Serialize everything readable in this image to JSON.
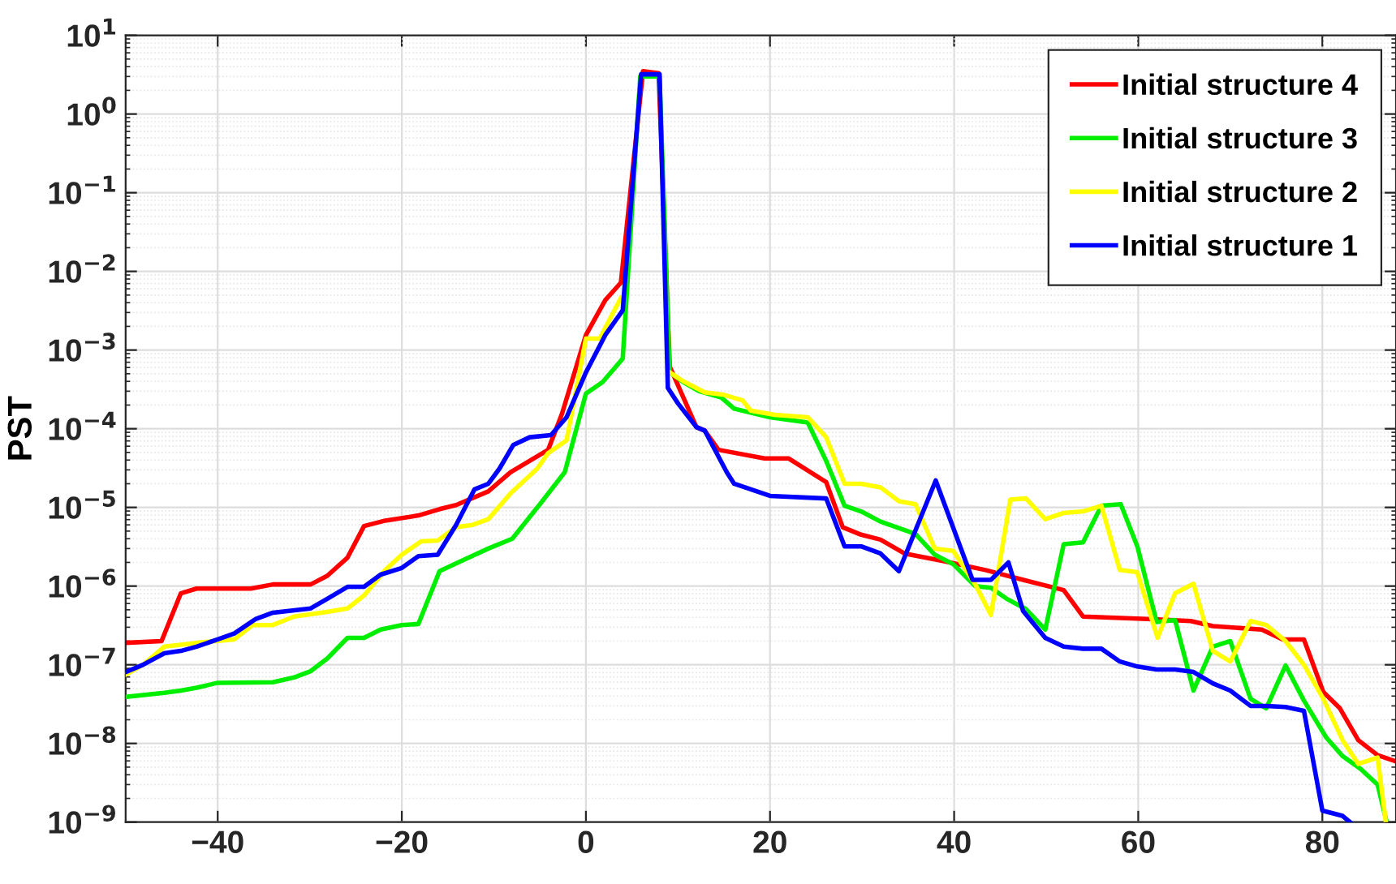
{
  "chart_data": {
    "type": "line",
    "ylabel": "PST",
    "log": "y",
    "grid": true,
    "legend": "top right",
    "line_style": "solid",
    "marker": "none",
    "xlim": [
      -50,
      88
    ],
    "ylim": [
      1e-09,
      10
    ],
    "xticks": [
      {
        "value": -40,
        "label": "−40"
      },
      {
        "value": -20,
        "label": "−20"
      },
      0,
      20,
      40,
      60,
      80
    ],
    "yticks": [
      {
        "value": 1e-09,
        "label": "10$^{−9}$"
      },
      {
        "value": 1e-08,
        "label": "10$^{−8}$"
      },
      {
        "value": 1e-07,
        "label": "10$^{−7}$"
      },
      {
        "value": 1e-06,
        "label": "10$^{−6}$"
      },
      {
        "value": 1e-05,
        "label": "10$^{−5}$"
      },
      {
        "value": 0.0001,
        "label": "10$^{−4}$"
      },
      {
        "value": 0.001,
        "label": "10$^{−3}$"
      },
      {
        "value": 0.01,
        "label": "10$^{−2}$"
      },
      {
        "value": 0.1,
        "label": "10$^{−1}$"
      },
      {
        "value": 1,
        "label": "10$^{0}$"
      },
      {
        "value": 10,
        "label": "10$^{1}$"
      }
    ],
    "series": [
      {
        "name": "Initial structure 4",
        "color": "#ff0000",
        "x": [
          -50,
          -46.1,
          -44.0,
          -42.3,
          -36.4,
          -34,
          -29.9,
          -28.1,
          -25.9,
          -24.1,
          -21.8,
          -18.2,
          -15.9,
          -14.1,
          -10.6,
          -8.2,
          -4.1,
          -2.6,
          0,
          2.1,
          3.8,
          6.2,
          7.9,
          9.1,
          12.0,
          12.9,
          14.4,
          19.4,
          22.0,
          26.1,
          27.9,
          29.9,
          32.0,
          34.6,
          38.7,
          43.4,
          47.5,
          51.9,
          54.0,
          61.6,
          65.7,
          68.1,
          73.4,
          75.7,
          78.0,
          80.1,
          81.9,
          83.9,
          86.0,
          88
        ],
        "values": [
          1.9e-07,
          2e-07,
          8.1e-07,
          9.3e-07,
          9.3e-07,
          1.05e-06,
          1.05e-06,
          1.35e-06,
          2.3e-06,
          5.8e-06,
          6.8e-06,
          7.9e-06,
          9.5e-06,
          1.07e-05,
          1.6e-05,
          2.8e-05,
          5.4e-05,
          0.000155,
          0.00155,
          0.0043,
          0.0072,
          3.5,
          3.3,
          0.00062,
          0.000105,
          9.5e-05,
          5.4e-05,
          4.2e-05,
          4.2e-05,
          2.1e-05,
          5.6e-06,
          4.5e-06,
          3.9e-06,
          2.6e-06,
          2.1e-06,
          1.6e-06,
          1.2e-06,
          8.9e-07,
          4.1e-07,
          3.8e-07,
          3.6e-07,
          3.1e-07,
          2.8e-07,
          2.1e-07,
          2.1e-07,
          4.5e-08,
          2.8e-08,
          1.1e-08,
          7.1e-09,
          5.9e-09
        ]
      },
      {
        "name": "Initial structure 3",
        "color": "#00ee00",
        "x": [
          -50,
          -45.8,
          -44,
          -42.3,
          -40,
          -34,
          -31.7,
          -29.9,
          -28.1,
          -25.9,
          -24.1,
          -22.3,
          -20,
          -18.2,
          -15.9,
          -13.5,
          -10.6,
          -8,
          -5,
          -2.3,
          0,
          1.8,
          4.0,
          5.9,
          8.0,
          9.1,
          10.6,
          12.3,
          14.7,
          16.1,
          20,
          24.1,
          26.1,
          28.1,
          29.9,
          32.0,
          35.8,
          37.9,
          39.9,
          42.3,
          44.0,
          45.8,
          47.8,
          49.9,
          51.9,
          54.0,
          56.0,
          58.1,
          59.9,
          62.0,
          64.0,
          66.0,
          68.1,
          70.0,
          72.2,
          73.9,
          76.0,
          78.0,
          80.4,
          82.2,
          84.2,
          86.0,
          86.9
        ],
        "values": [
          3.9e-08,
          4.4e-08,
          4.7e-08,
          5.1e-08,
          5.9e-08,
          6e-08,
          6.9e-08,
          8.3e-08,
          1.2e-07,
          2.2e-07,
          2.2e-07,
          2.8e-07,
          3.2e-07,
          3.3e-07,
          1.55e-06,
          2.1e-06,
          3e-06,
          4e-06,
          1.1e-05,
          2.8e-05,
          0.00028,
          0.00039,
          0.00078,
          3.0,
          3.0,
          0.00052,
          0.00039,
          0.0003,
          0.00025,
          0.00018,
          0.00014,
          0.00012,
          3.9e-05,
          1.05e-05,
          8.9e-06,
          6.6e-06,
          4.6e-06,
          2.5e-06,
          1.9e-06,
          1e-06,
          9.5e-07,
          6.8e-07,
          5.1e-07,
          2.8e-07,
          3.4e-06,
          3.6e-06,
          1.05e-05,
          1.1e-05,
          3.2e-06,
          3.5e-07,
          3.7e-07,
          4.7e-08,
          1.7e-07,
          2e-07,
          3.7e-08,
          2.8e-08,
          9.8e-08,
          3.5e-08,
          1.2e-08,
          6.9e-09,
          4.7e-09,
          3e-09,
          1.1e-09
        ]
      },
      {
        "name": "Initial structure 2",
        "color": "#ffff00",
        "x": [
          -50,
          -48.1,
          -45.8,
          -44,
          -42.3,
          -38.2,
          -36.2,
          -34,
          -31.7,
          -28.1,
          -25.9,
          -24.1,
          -21.8,
          -20,
          -17.9,
          -16.1,
          -14.1,
          -12.3,
          -10.6,
          -8.2,
          -5.3,
          -4.1,
          -2.1,
          0,
          1.5,
          3.8,
          5.9,
          8.0,
          9.1,
          10.6,
          12.9,
          15.0,
          17.0,
          17.9,
          20.5,
          24.1,
          26.1,
          28.1,
          29.9,
          32.0,
          34.0,
          35.8,
          37.9,
          39.9,
          42.3,
          44.0,
          46.1,
          47.8,
          49.9,
          51.9,
          54.0,
          56.0,
          58.0,
          59.9,
          62.1,
          64.0,
          66.0,
          68.1,
          70.0,
          72.2,
          73.9,
          76.0,
          78.0,
          80.1,
          82.2,
          83.9,
          86.0,
          86.9
        ],
        "values": [
          7.5e-08,
          1e-07,
          1.7e-07,
          1.8e-07,
          1.9e-07,
          2.1e-07,
          3.2e-07,
          3.2e-07,
          4.1e-07,
          4.7e-07,
          5.2e-07,
          7.6e-07,
          1.6e-06,
          2.5e-06,
          3.7e-06,
          3.8e-06,
          5.6e-06,
          6e-06,
          7.1e-06,
          1.5e-05,
          3.1e-05,
          4.9e-05,
          7.1e-05,
          0.0014,
          0.0014,
          0.0046,
          null,
          null,
          0.00052,
          0.0004,
          0.00029,
          0.00027,
          0.00023,
          0.00017,
          0.00015,
          0.00014,
          7.8e-05,
          2e-05,
          2e-05,
          1.8e-05,
          1.2e-05,
          1.1e-05,
          3e-06,
          2.8e-06,
          1.05e-06,
          4.3e-07,
          1.26e-05,
          1.3e-05,
          7.1e-06,
          8.5e-06,
          8.9e-06,
          1.05e-05,
          1.6e-06,
          1.5e-06,
          2.2e-07,
          8.1e-07,
          1.07e-06,
          1.5e-07,
          1.1e-07,
          3.6e-07,
          3.2e-07,
          2e-07,
          1e-07,
          3.7e-08,
          1.1e-08,
          5.5e-09,
          6.6e-09,
          1e-09
        ]
      },
      {
        "name": "Initial structure 1",
        "color": "#0000ff",
        "x": [
          -50,
          -48.1,
          -45.8,
          -44,
          -42.3,
          -40,
          -38.2,
          -35.9,
          -34,
          -29.9,
          -28.1,
          -25.9,
          -24.1,
          -22.3,
          -20,
          -18.2,
          -16.1,
          -14.1,
          -12.1,
          -10.6,
          -9.4,
          -7.9,
          -6.1,
          -3.8,
          -2.1,
          0,
          2.1,
          4.0,
          6.0,
          8.0,
          8.9,
          10.0,
          12.0,
          12.9,
          15.3,
          16.1,
          20,
          26.1,
          28.1,
          29.9,
          32.0,
          34.0,
          38.0,
          42.0,
          44.0,
          45.9,
          47.5,
          49.9,
          51.9,
          54.0,
          56.0,
          58.0,
          59.9,
          62.0,
          64.0,
          66.0,
          68.1,
          70.0,
          72.2,
          73.9,
          76.0,
          78.0,
          80.0,
          82.2,
          83.0
        ],
        "values": [
          8.1e-08,
          1e-07,
          1.4e-07,
          1.5e-07,
          1.7e-07,
          2.1e-07,
          2.5e-07,
          3.8e-07,
          4.6e-07,
          5.2e-07,
          6.9e-07,
          9.8e-07,
          9.8e-07,
          1.4e-06,
          1.7e-06,
          2.4e-06,
          2.5e-06,
          6e-06,
          1.7e-05,
          2e-05,
          3.1e-05,
          6.2e-05,
          7.8e-05,
          8.3e-05,
          0.00014,
          0.00052,
          0.00155,
          0.0032,
          3.2,
          3.2,
          0.00033,
          0.00021,
          0.000105,
          9.5e-05,
          2.8e-05,
          2e-05,
          1.4e-05,
          1.3e-05,
          3.2e-06,
          3.2e-06,
          2.6e-06,
          1.55e-06,
          2.2e-05,
          1.2e-06,
          1.2e-06,
          2e-06,
          4.8e-07,
          2.2e-07,
          1.7e-07,
          1.6e-07,
          1.6e-07,
          1.1e-07,
          9.5e-08,
          8.7e-08,
          8.7e-08,
          8.1e-08,
          5.8e-08,
          4.7e-08,
          3e-08,
          3e-08,
          2.9e-08,
          2.6e-08,
          1.4e-09,
          1.2e-09,
          1e-09
        ]
      }
    ]
  }
}
